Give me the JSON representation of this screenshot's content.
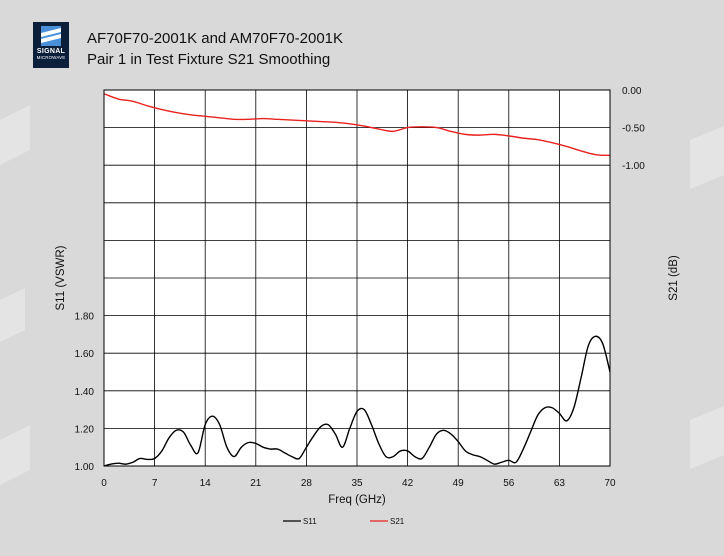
{
  "logo": {
    "word": "SIGNAL",
    "sub": "MICROWAVE",
    "colors": {
      "background": "#0b1f3a",
      "accent": "#4a90d9"
    }
  },
  "title": {
    "line1": "AF70F70-2001K and AM70F70-2001K",
    "line2": "Pair 1 in Test Fixture S21 Smoothing"
  },
  "chart_data": {
    "type": "line",
    "title": "AF70F70-2001K and AM70F70-2001K Pair 1 in Test Fixture S21 Smoothing",
    "xlabel": "Freq (GHz)",
    "ylabel_left": "S11 (VSWR)",
    "ylabel_right": "S21 (dB)",
    "xlim": [
      0,
      70
    ],
    "x_ticks": [
      0,
      7,
      14,
      21,
      28,
      35,
      42,
      49,
      56,
      63,
      70
    ],
    "x_tick_labels": [
      "0",
      "7",
      "14",
      "21",
      "28",
      "35",
      "42",
      "49",
      "56",
      "63",
      "70"
    ],
    "ylim_left": [
      1.0,
      3.0
    ],
    "y_ticks_left": [
      1.0,
      1.2,
      1.4,
      1.6,
      1.8
    ],
    "y_tick_labels_left": [
      "1.00",
      "1.20",
      "1.40",
      "1.60",
      "1.80"
    ],
    "ylim_right": [
      -5.0,
      0.0
    ],
    "y_ticks_right": [
      0.0,
      -0.5,
      -1.0
    ],
    "y_tick_labels_right": [
      "0.00",
      "-0.50",
      "-1.00"
    ],
    "grid": true,
    "legend_position": "bottom-center",
    "series": [
      {
        "name": "S11",
        "axis": "left",
        "color": "#000000",
        "x": [
          0,
          1,
          2,
          3,
          4,
          5,
          6,
          7,
          8,
          9,
          10,
          11,
          12,
          13,
          14,
          15,
          16,
          17,
          18,
          19,
          20,
          21,
          22,
          23,
          24,
          25,
          26,
          27,
          28,
          29,
          30,
          31,
          32,
          33,
          34,
          35,
          36,
          37,
          38,
          39,
          40,
          41,
          42,
          43,
          44,
          45,
          46,
          47,
          48,
          49,
          50,
          51,
          52,
          53,
          54,
          55,
          56,
          57,
          58,
          59,
          60,
          61,
          62,
          63,
          64,
          65,
          66,
          67,
          68,
          69,
          70
        ],
        "values": [
          1.0,
          1.01,
          1.015,
          1.01,
          1.02,
          1.04,
          1.035,
          1.04,
          1.08,
          1.15,
          1.19,
          1.18,
          1.11,
          1.07,
          1.22,
          1.265,
          1.22,
          1.1,
          1.05,
          1.1,
          1.125,
          1.12,
          1.1,
          1.09,
          1.09,
          1.07,
          1.05,
          1.04,
          1.1,
          1.16,
          1.21,
          1.22,
          1.17,
          1.1,
          1.2,
          1.29,
          1.3,
          1.22,
          1.12,
          1.05,
          1.05,
          1.08,
          1.08,
          1.05,
          1.04,
          1.1,
          1.17,
          1.19,
          1.17,
          1.13,
          1.08,
          1.06,
          1.05,
          1.03,
          1.01,
          1.02,
          1.03,
          1.02,
          1.09,
          1.18,
          1.27,
          1.31,
          1.31,
          1.28,
          1.24,
          1.31,
          1.47,
          1.64,
          1.69,
          1.65,
          1.5
        ]
      },
      {
        "name": "S21",
        "axis": "right",
        "color": "#e8231f",
        "x": [
          0,
          2,
          4,
          6,
          8,
          10,
          12,
          14,
          16,
          18,
          20,
          22,
          24,
          26,
          28,
          30,
          32,
          34,
          36,
          38,
          40,
          42,
          44,
          46,
          48,
          50,
          52,
          54,
          56,
          58,
          60,
          62,
          64,
          66,
          68,
          70
        ],
        "values": [
          -0.05,
          -0.12,
          -0.15,
          -0.21,
          -0.26,
          -0.3,
          -0.33,
          -0.35,
          -0.37,
          -0.39,
          -0.39,
          -0.38,
          -0.39,
          -0.4,
          -0.41,
          -0.42,
          -0.43,
          -0.45,
          -0.48,
          -0.52,
          -0.55,
          -0.5,
          -0.49,
          -0.5,
          -0.55,
          -0.59,
          -0.6,
          -0.59,
          -0.61,
          -0.64,
          -0.66,
          -0.7,
          -0.75,
          -0.81,
          -0.86,
          -0.87
        ]
      }
    ]
  }
}
